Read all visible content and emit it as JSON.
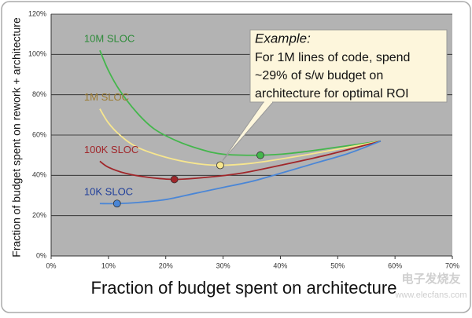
{
  "chart_data": {
    "type": "line",
    "x_axis_label": "Fraction of budget spent on architecture",
    "y_axis_label": "Fraction of budget spent on rework + architecture",
    "xlim": [
      0,
      70
    ],
    "ylim": [
      0,
      120
    ],
    "xticks": [
      {
        "value": 0,
        "label": "0%"
      },
      {
        "value": 10,
        "label": "10%"
      },
      {
        "value": 20,
        "label": "20%"
      },
      {
        "value": 30,
        "label": "30%"
      },
      {
        "value": 40,
        "label": "40%"
      },
      {
        "value": 50,
        "label": "50%"
      },
      {
        "value": 60,
        "label": "60%"
      },
      {
        "value": 70,
        "label": "70%"
      }
    ],
    "yticks": [
      {
        "value": 0,
        "label": "0%"
      },
      {
        "value": 20,
        "label": "20%"
      },
      {
        "value": 40,
        "label": "40%"
      },
      {
        "value": 60,
        "label": "60%"
      },
      {
        "value": 80,
        "label": "80%"
      },
      {
        "value": 100,
        "label": "100%"
      },
      {
        "value": 120,
        "label": "120%"
      }
    ],
    "grid": true,
    "series": [
      {
        "name": "10M SLOC",
        "color": "#44b64c",
        "label_color": "#2e8b3a",
        "x": [
          8.5,
          10,
          12,
          15,
          18,
          22,
          26,
          30,
          36.5,
          42,
          50,
          57.5
        ],
        "values": [
          102,
          92,
          82,
          71,
          63,
          57,
          53,
          50.5,
          50,
          51,
          54,
          57
        ],
        "optimum": [
          36.5,
          50
        ]
      },
      {
        "name": "1M SLOC",
        "color": "#f7e68e",
        "label_color": "#9b7a30",
        "x": [
          8.5,
          10,
          12,
          15,
          20,
          25,
          29.5,
          35,
          42,
          50,
          57.5
        ],
        "values": [
          73,
          66,
          60,
          54,
          49,
          46,
          45,
          46,
          49,
          53,
          57
        ],
        "optimum": [
          29.5,
          45
        ]
      },
      {
        "name": "100K SLOC",
        "color": "#a0262a",
        "label_color": "#a0262a",
        "x": [
          8.5,
          10,
          13,
          17,
          21.5,
          27,
          33,
          40,
          48,
          57.5
        ],
        "values": [
          47,
          44,
          41,
          39,
          38,
          39,
          41,
          45,
          50,
          57
        ],
        "optimum": [
          21.5,
          38
        ]
      },
      {
        "name": "10K SLOC",
        "color": "#4a86d6",
        "label_color": "#1f3e9a",
        "x": [
          8.5,
          11.5,
          15,
          20,
          25,
          30,
          35,
          40,
          46,
          52,
          57.5
        ],
        "values": [
          26,
          26,
          26.5,
          28,
          31,
          34,
          37,
          41,
          46,
          51,
          57
        ],
        "optimum": [
          11.5,
          26
        ]
      }
    ],
    "callout": {
      "heading": "Example:",
      "lines": [
        "For 1M lines of code, spend",
        "~29% of s/w budget on",
        "architecture for optimal ROI"
      ],
      "points_to_series": 1
    },
    "watermark": [
      "电子发烧友",
      "www.elecfans.com"
    ]
  }
}
